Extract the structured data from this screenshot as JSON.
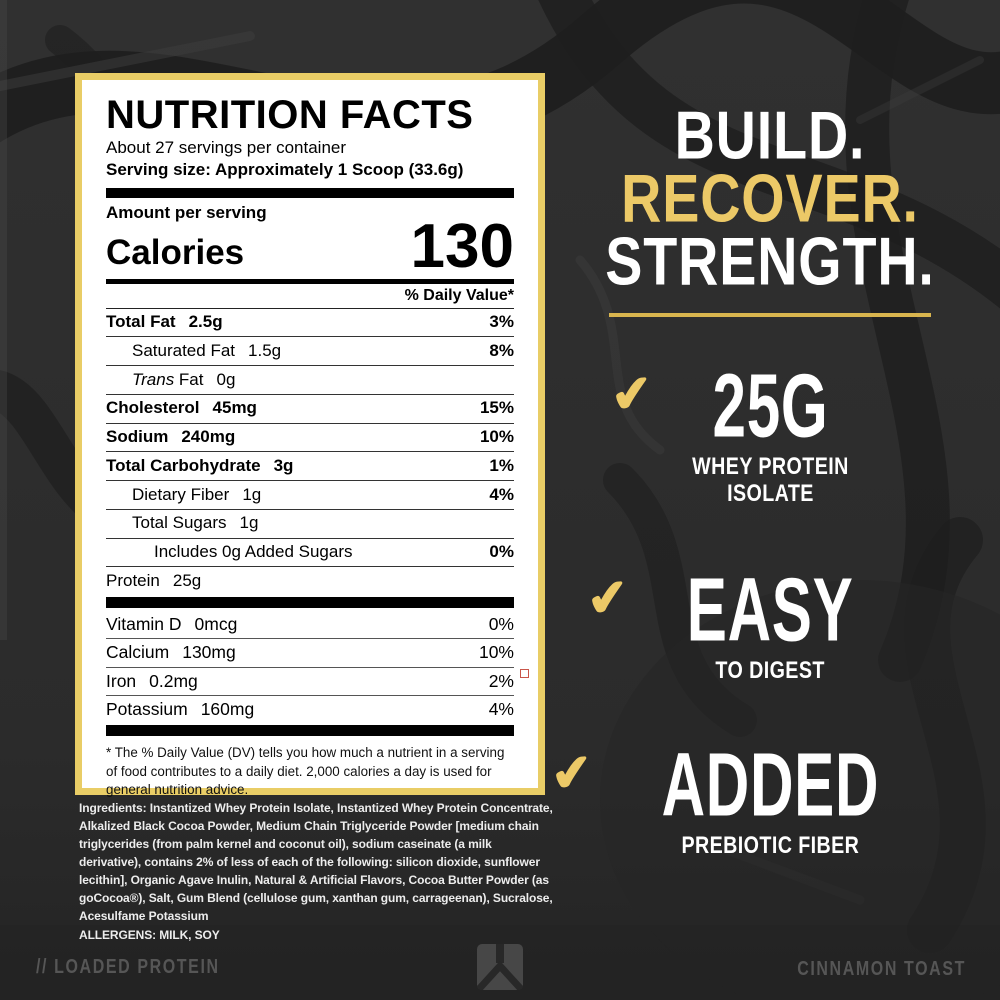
{
  "colors": {
    "background": "#2d2d2d",
    "gold": "#ecc967",
    "frame_gold": "#e9cd66",
    "underline_gold": "#d9b54e",
    "white": "#ffffff",
    "footer_gray": "#565656"
  },
  "icons": {
    "checkmark": "✔",
    "brand_logo": "brand-logo-mark"
  },
  "nutrition_label": {
    "title": "NUTRITION FACTS",
    "servings_per_container": "About 27 servings per container",
    "serving_size": "Serving size: Approximately 1 Scoop (33.6g)",
    "amount_per_serving": "Amount per serving",
    "calories_label": "Calories",
    "calories_value": "130",
    "daily_value_header": "% Daily Value*",
    "rows": [
      {
        "label": "Total Fat",
        "amount": "2.5g",
        "dv": "3%",
        "bold": true,
        "indent": 0,
        "italic": ""
      },
      {
        "label": "Saturated Fat",
        "amount": "1.5g",
        "dv": "8%",
        "bold": false,
        "indent": 1,
        "italic": ""
      },
      {
        "label": " Fat",
        "amount": "0g",
        "dv": "",
        "bold": false,
        "indent": 1,
        "italic": "Trans"
      },
      {
        "label": "Cholesterol",
        "amount": "45mg",
        "dv": "15%",
        "bold": true,
        "indent": 0,
        "italic": ""
      },
      {
        "label": "Sodium",
        "amount": "240mg",
        "dv": "10%",
        "bold": true,
        "indent": 0,
        "italic": ""
      },
      {
        "label": "Total Carbohydrate",
        "amount": "3g",
        "dv": "1%",
        "bold": true,
        "indent": 0,
        "italic": ""
      },
      {
        "label": "Dietary Fiber",
        "amount": "1g",
        "dv": "4%",
        "bold": false,
        "indent": 1,
        "italic": ""
      },
      {
        "label": "Total Sugars",
        "amount": "1g",
        "dv": "",
        "bold": false,
        "indent": 1,
        "italic": ""
      },
      {
        "label": "Includes 0g Added Sugars",
        "amount": "",
        "dv": "0%",
        "bold": false,
        "indent": 2,
        "italic": ""
      },
      {
        "label": "Protein",
        "amount": "25g",
        "dv": "",
        "bold": false,
        "indent": 0,
        "italic": ""
      }
    ],
    "micronutrients": [
      {
        "label": "Vitamin D",
        "amount": "0mcg",
        "dv": "0%"
      },
      {
        "label": "Calcium",
        "amount": "130mg",
        "dv": "10%"
      },
      {
        "label": "Iron",
        "amount": "0.2mg",
        "dv": "2%"
      },
      {
        "label": "Potassium",
        "amount": "160mg",
        "dv": "4%"
      }
    ],
    "footnote": "* The % Daily Value (DV) tells you how much a nutrient in a serving of food contributes to a daily diet. 2,000 calories a day is used for general nutrition advice."
  },
  "ingredients": {
    "label": "Ingredients:",
    "text": " Instantized Whey Protein Isolate, Instantized Whey Protein Concentrate, Alkalized Black Cocoa Powder, Medium Chain Triglyceride Powder [medium chain triglycerides (from palm kernel and coconut oil), sodium caseinate (a milk derivative), contains 2% of less of each of the following: silicon dioxide, sunflower lecithin], Organic Agave Inulin, Natural & Artificial Flavors, Cocoa Butter Powder (as goCocoa®), Salt, Gum Blend (cellulose gum, xanthan gum, carrageenan), Sucralose, Acesulfame Potassium",
    "allergens": "ALLERGENS: MILK, SOY"
  },
  "marketing": {
    "headline": [
      {
        "text": "BUILD.",
        "color": "#ffffff"
      },
      {
        "text": "RECOVER.",
        "color": "#ecc967"
      },
      {
        "text": "STRENGTH.",
        "color": "#ffffff"
      }
    ],
    "benefits": [
      {
        "big": "25G",
        "sub_lines": [
          "WHEY PROTEIN",
          "ISOLATE"
        ]
      },
      {
        "big": "EASY",
        "sub_lines": [
          "TO DIGEST"
        ]
      },
      {
        "big": "ADDED",
        "sub_lines": [
          "PREBIOTIC FIBER"
        ]
      }
    ]
  },
  "footer": {
    "left": "// LOADED PROTEIN",
    "right": "CINNAMON TOAST"
  }
}
